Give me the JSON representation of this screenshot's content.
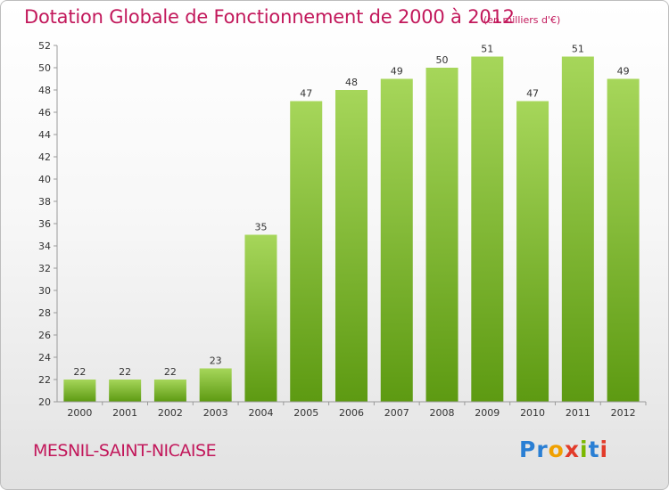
{
  "title": "Dotation Globale de Fonctionnement de 2000 à 2012",
  "unit_note": "(en milliers d'€)",
  "commune": "MESNIL-SAINT-NICAISE",
  "logo": {
    "text": "Proxiti",
    "colors": [
      "#2a7fd4",
      "#2a7fd4",
      "#f0a000",
      "#e23b2a",
      "#7bb800",
      "#2a7fd4",
      "#e23b2a"
    ]
  },
  "colors": {
    "bar_light": "#a6d65a",
    "bar_dark": "#5d9a12",
    "accent": "#c2185b"
  },
  "chart_data": {
    "type": "bar",
    "categories": [
      "2000",
      "2001",
      "2002",
      "2003",
      "2004",
      "2005",
      "2006",
      "2007",
      "2008",
      "2009",
      "2010",
      "2011",
      "2012"
    ],
    "values": [
      22,
      22,
      22,
      23,
      35,
      47,
      48,
      49,
      50,
      51,
      47,
      51,
      49
    ],
    "title": "Dotation Globale de Fonctionnement de 2000 à 2012",
    "xlabel": "",
    "ylabel": "",
    "ylim": [
      20,
      52
    ],
    "yticks": [
      20,
      22,
      24,
      26,
      28,
      30,
      32,
      34,
      36,
      38,
      40,
      42,
      44,
      46,
      48,
      50,
      52
    ],
    "grid": false
  }
}
